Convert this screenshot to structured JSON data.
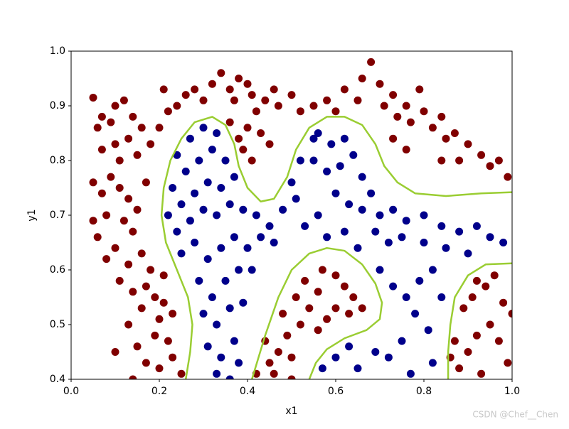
{
  "chart_data": {
    "type": "scatter",
    "xlabel": "x1",
    "ylabel": "y1",
    "xlim": [
      0,
      1
    ],
    "ylim": [
      0.4,
      1
    ],
    "xticks": [
      {
        "value": 0,
        "label": "0.0"
      },
      0.2,
      0.4,
      0.6,
      0.8,
      {
        "value": 1,
        "label": "1.0"
      }
    ],
    "yticks": [
      0.4,
      0.5,
      0.6,
      0.7,
      0.8,
      0.9,
      {
        "value": 1,
        "label": "1.0"
      }
    ],
    "series": [
      {
        "type": "scatter",
        "color": "#800000",
        "x": [
          0.05,
          0.07,
          0.06,
          0.09,
          0.1,
          0.12,
          0.14,
          0.16,
          0.13,
          0.1,
          0.07,
          0.11,
          0.15,
          0.18,
          0.2,
          0.22,
          0.24,
          0.21,
          0.26,
          0.28,
          0.3,
          0.32,
          0.34,
          0.36,
          0.37,
          0.38,
          0.4,
          0.41,
          0.42,
          0.44,
          0.46,
          0.47,
          0.5,
          0.52,
          0.55,
          0.58,
          0.6,
          0.62,
          0.65,
          0.66,
          0.68,
          0.7,
          0.71,
          0.73,
          0.74,
          0.76,
          0.77,
          0.79,
          0.8,
          0.82,
          0.84,
          0.85,
          0.87,
          0.9,
          0.93,
          0.95,
          0.97,
          0.99,
          0.88,
          0.84,
          0.76,
          0.73,
          0.43,
          0.45,
          0.41,
          0.39,
          0.4,
          0.36,
          0.38,
          0.05,
          0.07,
          0.09,
          0.11,
          0.13,
          0.15,
          0.17,
          0.08,
          0.05,
          0.12,
          0.14,
          0.06,
          0.1,
          0.08,
          0.13,
          0.16,
          0.18,
          0.11,
          0.14,
          0.17,
          0.19,
          0.21,
          0.23,
          0.16,
          0.13,
          0.19,
          0.22,
          0.15,
          0.1,
          0.17,
          0.2,
          0.23,
          0.25,
          0.14,
          0.21,
          0.2,
          0.42,
          0.45,
          0.47,
          0.44,
          0.5,
          0.49,
          0.52,
          0.48,
          0.51,
          0.54,
          0.56,
          0.53,
          0.57,
          0.6,
          0.62,
          0.64,
          0.66,
          0.6,
          0.58,
          0.56,
          0.63,
          0.5,
          0.46,
          0.88,
          0.9,
          0.92,
          0.95,
          0.97,
          0.99,
          0.93,
          0.87,
          0.89,
          0.91,
          0.94,
          0.96,
          0.98,
          1.0,
          0.86,
          0.92
        ],
        "values": [
          0.915,
          0.88,
          0.86,
          0.87,
          0.9,
          0.91,
          0.88,
          0.86,
          0.84,
          0.83,
          0.82,
          0.8,
          0.81,
          0.83,
          0.86,
          0.89,
          0.9,
          0.93,
          0.92,
          0.93,
          0.91,
          0.94,
          0.96,
          0.93,
          0.91,
          0.95,
          0.94,
          0.92,
          0.89,
          0.91,
          0.93,
          0.9,
          0.92,
          0.89,
          0.9,
          0.91,
          0.89,
          0.93,
          0.91,
          0.95,
          0.98,
          0.94,
          0.9,
          0.92,
          0.88,
          0.9,
          0.87,
          0.93,
          0.89,
          0.86,
          0.88,
          0.84,
          0.85,
          0.83,
          0.81,
          0.79,
          0.8,
          0.77,
          0.8,
          0.8,
          0.82,
          0.84,
          0.85,
          0.83,
          0.8,
          0.82,
          0.86,
          0.87,
          0.84,
          0.76,
          0.74,
          0.77,
          0.75,
          0.73,
          0.71,
          0.76,
          0.7,
          0.69,
          0.69,
          0.67,
          0.66,
          0.64,
          0.62,
          0.61,
          0.63,
          0.6,
          0.58,
          0.56,
          0.57,
          0.55,
          0.54,
          0.52,
          0.53,
          0.5,
          0.48,
          0.47,
          0.46,
          0.45,
          0.43,
          0.42,
          0.44,
          0.41,
          0.4,
          0.59,
          0.51,
          0.41,
          0.43,
          0.45,
          0.47,
          0.44,
          0.48,
          0.5,
          0.52,
          0.55,
          0.53,
          0.56,
          0.58,
          0.6,
          0.59,
          0.57,
          0.55,
          0.53,
          0.53,
          0.51,
          0.49,
          0.52,
          0.4,
          0.41,
          0.42,
          0.45,
          0.48,
          0.5,
          0.47,
          0.43,
          0.41,
          0.47,
          0.53,
          0.55,
          0.57,
          0.59,
          0.54,
          0.52,
          0.44,
          0.58
        ]
      },
      {
        "type": "scatter",
        "color": "#00008b",
        "x": [
          0.24,
          0.27,
          0.3,
          0.33,
          0.26,
          0.29,
          0.32,
          0.35,
          0.37,
          0.23,
          0.25,
          0.28,
          0.31,
          0.34,
          0.22,
          0.24,
          0.27,
          0.3,
          0.33,
          0.36,
          0.39,
          0.42,
          0.45,
          0.48,
          0.51,
          0.5,
          0.52,
          0.55,
          0.56,
          0.59,
          0.62,
          0.55,
          0.58,
          0.61,
          0.64,
          0.66,
          0.68,
          0.6,
          0.63,
          0.66,
          0.7,
          0.73,
          0.76,
          0.8,
          0.84,
          0.88,
          0.92,
          0.95,
          0.98,
          0.9,
          0.85,
          0.8,
          0.75,
          0.72,
          0.69,
          0.56,
          0.53,
          0.58,
          0.62,
          0.65,
          0.25,
          0.28,
          0.31,
          0.34,
          0.37,
          0.4,
          0.43,
          0.46,
          0.29,
          0.32,
          0.35,
          0.38,
          0.41,
          0.3,
          0.33,
          0.36,
          0.39,
          0.31,
          0.34,
          0.37,
          0.33,
          0.36,
          0.38,
          0.7,
          0.73,
          0.76,
          0.79,
          0.82,
          0.78,
          0.81,
          0.75,
          0.72,
          0.69,
          0.63,
          0.6,
          0.57,
          0.65,
          0.82,
          0.77,
          0.84
        ],
        "values": [
          0.81,
          0.84,
          0.86,
          0.85,
          0.78,
          0.8,
          0.82,
          0.8,
          0.77,
          0.75,
          0.72,
          0.74,
          0.76,
          0.75,
          0.7,
          0.67,
          0.69,
          0.71,
          0.7,
          0.72,
          0.71,
          0.7,
          0.68,
          0.71,
          0.73,
          0.76,
          0.8,
          0.84,
          0.85,
          0.83,
          0.84,
          0.8,
          0.78,
          0.79,
          0.81,
          0.77,
          0.74,
          0.74,
          0.72,
          0.71,
          0.7,
          0.71,
          0.69,
          0.7,
          0.68,
          0.67,
          0.68,
          0.66,
          0.65,
          0.63,
          0.64,
          0.65,
          0.66,
          0.65,
          0.67,
          0.7,
          0.68,
          0.66,
          0.67,
          0.64,
          0.63,
          0.65,
          0.62,
          0.64,
          0.66,
          0.64,
          0.66,
          0.65,
          0.58,
          0.55,
          0.58,
          0.6,
          0.6,
          0.52,
          0.5,
          0.53,
          0.54,
          0.46,
          0.44,
          0.47,
          0.41,
          0.4,
          0.43,
          0.6,
          0.57,
          0.55,
          0.58,
          0.6,
          0.52,
          0.49,
          0.47,
          0.44,
          0.45,
          0.46,
          0.44,
          0.42,
          0.42,
          0.43,
          0.41,
          0.55
        ]
      },
      {
        "type": "line",
        "color": "#9acd32",
        "x": [
          0.26,
          0.27,
          0.275,
          0.265,
          0.24,
          0.215,
          0.205,
          0.21,
          0.225,
          0.25,
          0.28,
          0.32,
          0.35,
          0.37,
          0.38,
          0.4,
          0.43,
          0.46,
          0.49,
          0.51,
          0.54,
          0.58,
          0.62,
          0.66,
          0.69,
          0.71,
          0.74,
          0.78,
          0.85,
          0.93,
          1.0,
          null,
          0.41,
          0.44,
          0.47,
          0.5,
          0.54,
          0.58,
          0.62,
          0.66,
          0.69,
          0.705,
          0.7,
          0.67,
          0.62,
          0.58,
          0.555,
          0.54,
          null,
          0.855,
          0.855,
          0.86,
          0.87,
          0.9,
          0.94,
          1.0
        ],
        "values": [
          0.4,
          0.45,
          0.5,
          0.55,
          0.6,
          0.65,
          0.7,
          0.75,
          0.8,
          0.84,
          0.87,
          0.88,
          0.865,
          0.83,
          0.79,
          0.75,
          0.725,
          0.73,
          0.77,
          0.82,
          0.86,
          0.88,
          0.88,
          0.865,
          0.83,
          0.79,
          0.76,
          0.74,
          0.735,
          0.74,
          0.742,
          null,
          0.4,
          0.48,
          0.55,
          0.6,
          0.63,
          0.64,
          0.635,
          0.61,
          0.575,
          0.54,
          0.51,
          0.49,
          0.475,
          0.455,
          0.43,
          0.4,
          null,
          0.4,
          0.45,
          0.5,
          0.55,
          0.59,
          0.61,
          0.612
        ]
      }
    ]
  },
  "watermark": "CSDN @Chef__Chen"
}
